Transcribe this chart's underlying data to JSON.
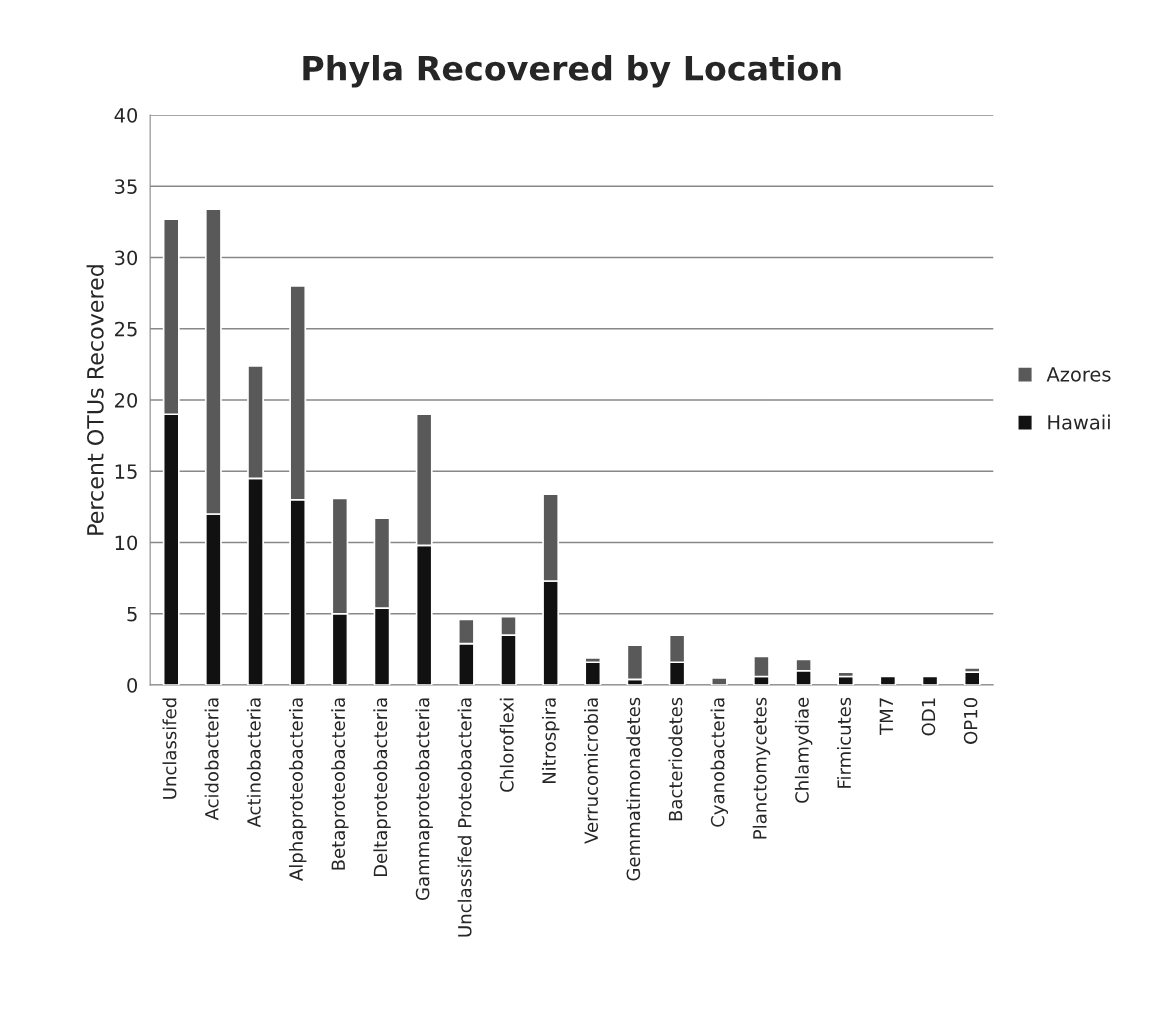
{
  "chart_data": {
    "type": "bar",
    "title": "Phyla Recovered by Location",
    "ylabel": "Percent OTUs Recovered",
    "categories": [
      "Unclassifed",
      "Acidobacteria",
      "Actinobacteria",
      "Alphaproteobacteria",
      "Betaproteobacteria",
      "Deltaproteobacteria",
      "Gammaproteobacteria",
      "Unclassifed Proteobacteria",
      "Chloroflexi",
      "Nitrospira",
      "Verrucomicrobia",
      "Gemmatimonadetes",
      "Bacteriodetes",
      "Cyanobacteria",
      "Planctomycetes",
      "Chlamydiae",
      "Firmicutes",
      "TM7",
      "OD1",
      "OP10"
    ],
    "stacked": true,
    "series": [
      {
        "name": "Hawaii",
        "color": "#111111",
        "values": [
          19.0,
          12.0,
          14.5,
          13.0,
          5.0,
          5.4,
          9.8,
          2.9,
          3.5,
          7.3,
          1.6,
          0.4,
          1.6,
          0,
          0.6,
          1.0,
          0.6,
          0.6,
          0.6,
          0.9
        ]
      },
      {
        "name": "Azores",
        "color": "#595959",
        "values": [
          13.7,
          21.4,
          7.9,
          15.0,
          8.1,
          6.3,
          9.2,
          1.7,
          1.3,
          6.1,
          0.3,
          2.4,
          1.9,
          0.5,
          1.4,
          0.8,
          0.3,
          0,
          0,
          0.3
        ]
      }
    ],
    "ylim": [
      0,
      40
    ],
    "yticks": [
      0,
      5,
      10,
      15,
      20,
      25,
      30,
      35,
      40
    ],
    "grid": "y",
    "legend": "right"
  }
}
